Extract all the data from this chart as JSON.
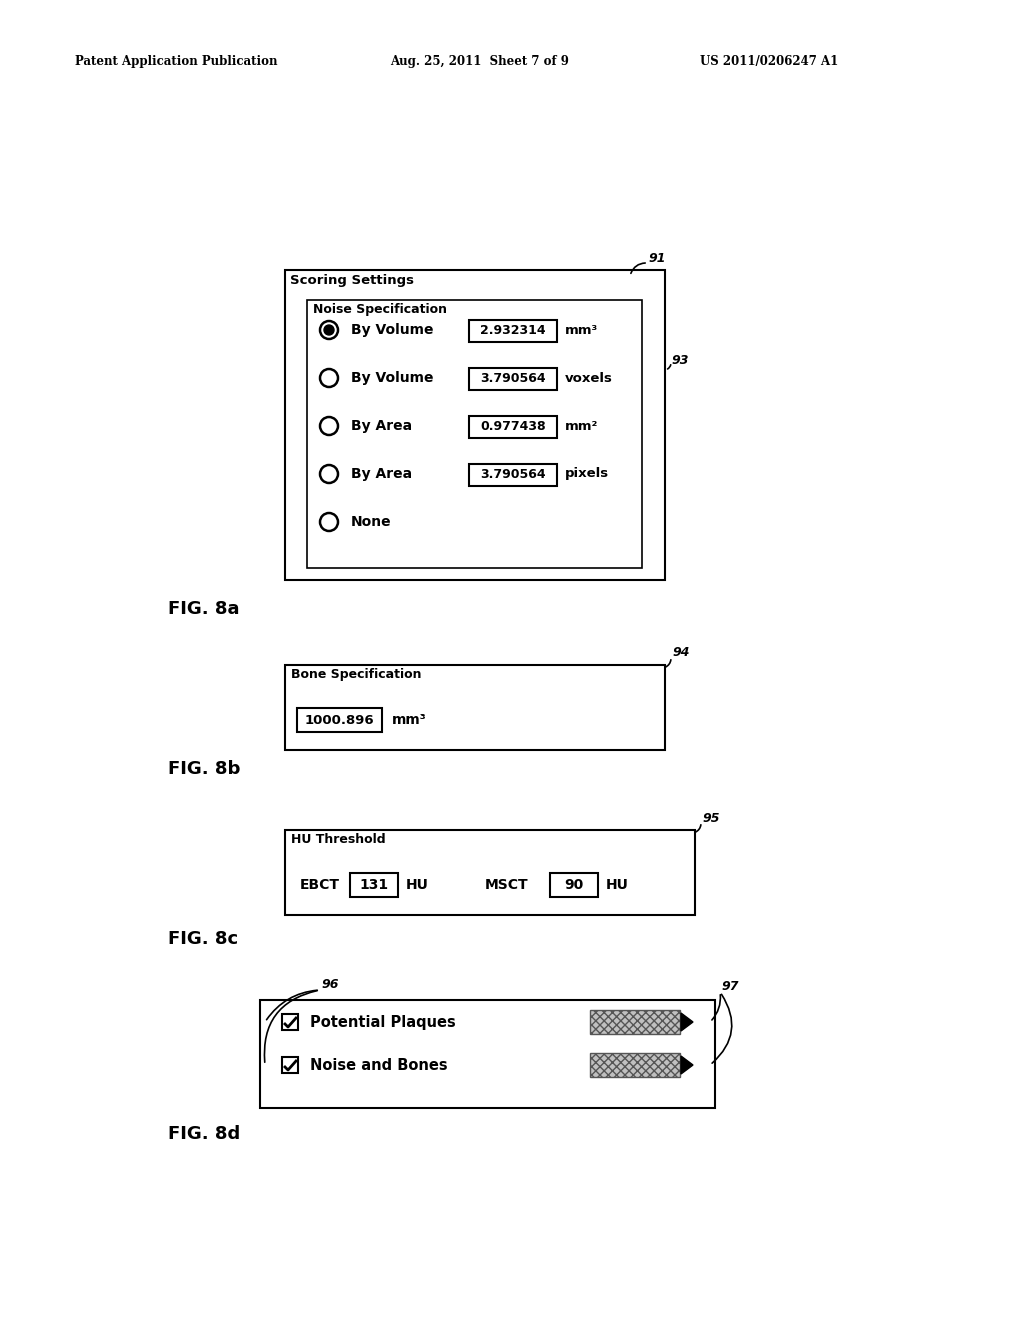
{
  "background_color": "#ffffff",
  "header_left": "Patent Application Publication",
  "header_middle": "Aug. 25, 2011  Sheet 7 of 9",
  "header_right": "US 2011/0206247 A1",
  "fig8a_label": "FIG. 8a",
  "fig8b_label": "FIG. 8b",
  "fig8c_label": "FIG. 8c",
  "fig8d_label": "FIG. 8d",
  "panel91_title": "Scoring Settings",
  "panel91_group": "Noise Specification",
  "panel91_ref": "91",
  "panel93_ref": "93",
  "panel91_rows": [
    {
      "filled": true,
      "label": "By Volume",
      "value": "2.932314",
      "unit": "mm³"
    },
    {
      "filled": false,
      "label": "By Volume",
      "value": "3.790564",
      "unit": "voxels"
    },
    {
      "filled": false,
      "label": "By Area",
      "value": "0.977438",
      "unit": "mm²"
    },
    {
      "filled": false,
      "label": "By Area",
      "value": "3.790564",
      "unit": "pixels"
    },
    {
      "filled": false,
      "label": "None",
      "value": null,
      "unit": null
    }
  ],
  "panel94_ref": "94",
  "panel94_group": "Bone Specification",
  "panel94_value": "1000.896",
  "panel94_unit": "mm³",
  "panel95_ref": "95",
  "panel95_group": "HU Threshold",
  "panel95_ebct_label": "EBCT",
  "panel95_ebct_value": "131",
  "panel95_ebct_unit": "HU",
  "panel95_msct_label": "MSCT",
  "panel95_msct_value": "90",
  "panel95_msct_unit": "HU",
  "panel96_ref": "96",
  "panel97_ref": "97",
  "panel8d_rows": [
    {
      "checkbox": true,
      "label": "Potential Plaques"
    },
    {
      "checkbox": true,
      "label": "Noise and Bones"
    }
  ]
}
